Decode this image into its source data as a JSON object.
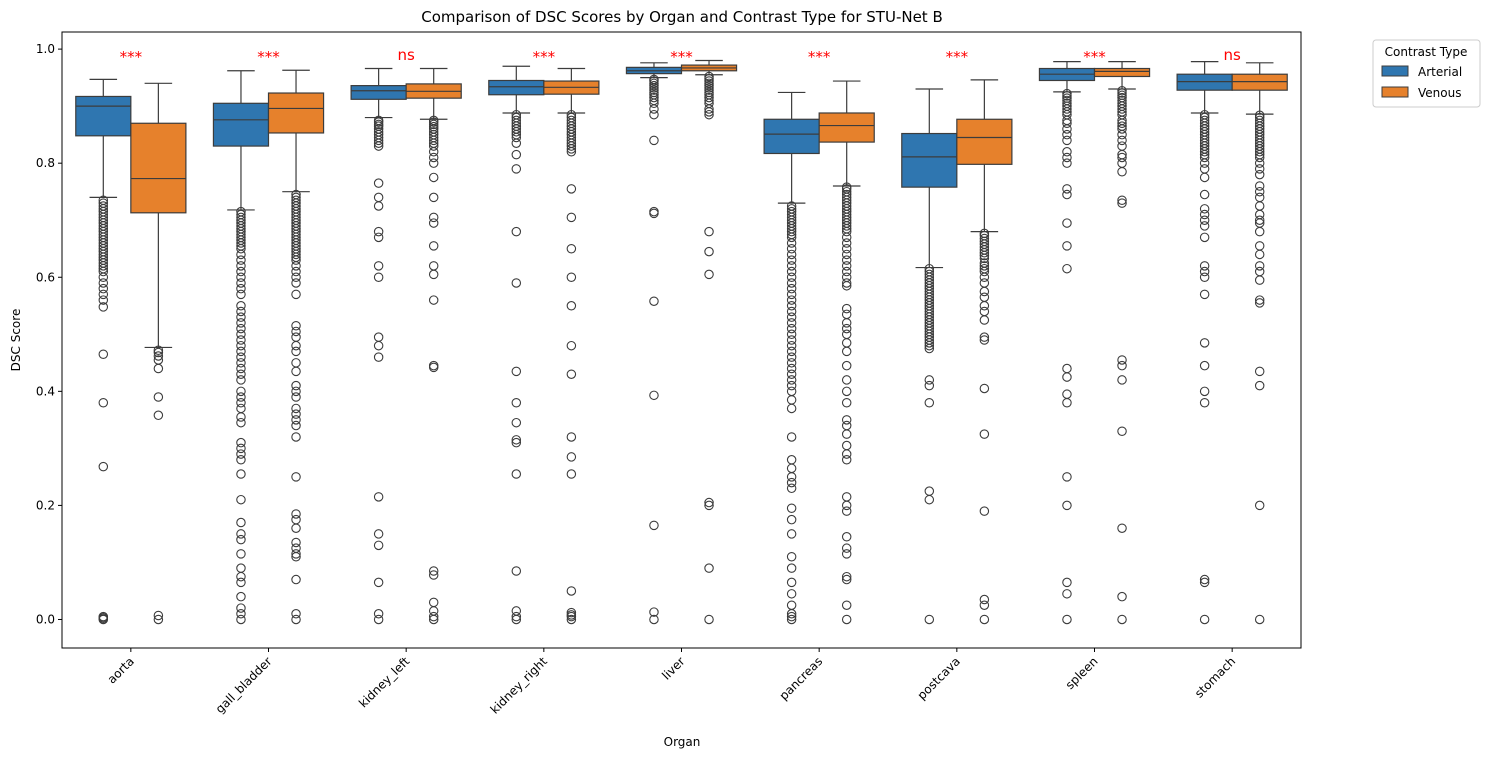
{
  "chart_data": {
    "type": "box",
    "title": "Comparison of DSC Scores by Organ and Contrast Type for STU-Net B",
    "xlabel": "Organ",
    "ylabel": "DSC Score",
    "ylim": [
      -0.05,
      1.03
    ],
    "yticks": [
      0.0,
      0.2,
      0.4,
      0.6,
      0.8,
      1.0
    ],
    "grid": false,
    "legend": {
      "title": "Contrast Type",
      "placement": "outside-top-right",
      "entries": [
        "Arterial",
        "Venous"
      ]
    },
    "colors": {
      "Arterial": "#2f76b0",
      "Venous": "#e6812c",
      "annotation": "#ff0000",
      "line": "#3c3c3c"
    },
    "categories": [
      "aorta",
      "gall_bladder",
      "kidney_left",
      "kidney_right",
      "liver",
      "pancreas",
      "postcava",
      "spleen",
      "stomach"
    ],
    "annotations": [
      "***",
      "***",
      "ns",
      "***",
      "***",
      "***",
      "***",
      "***",
      "ns"
    ],
    "series": [
      {
        "name": "Arterial",
        "boxes": [
          {
            "whislo": 0.74,
            "q1": 0.848,
            "med": 0.9,
            "q3": 0.917,
            "whishi": 0.947,
            "fliers": [
              0.735,
              0.73,
              0.725,
              0.72,
              0.715,
              0.71,
              0.705,
              0.7,
              0.695,
              0.69,
              0.685,
              0.68,
              0.675,
              0.67,
              0.665,
              0.66,
              0.655,
              0.65,
              0.645,
              0.64,
              0.635,
              0.63,
              0.625,
              0.62,
              0.615,
              0.61,
              0.6,
              0.59,
              0.58,
              0.57,
              0.56,
              0.548,
              0.465,
              0.38,
              0.268,
              0.005,
              0.003,
              0.001,
              0.0
            ]
          },
          {
            "whislo": 0.718,
            "q1": 0.83,
            "med": 0.876,
            "q3": 0.905,
            "whishi": 0.962,
            "fliers": [
              0.715,
              0.71,
              0.705,
              0.7,
              0.695,
              0.69,
              0.685,
              0.68,
              0.675,
              0.67,
              0.665,
              0.66,
              0.655,
              0.65,
              0.64,
              0.63,
              0.62,
              0.61,
              0.6,
              0.59,
              0.58,
              0.57,
              0.55,
              0.54,
              0.53,
              0.52,
              0.51,
              0.5,
              0.49,
              0.48,
              0.47,
              0.46,
              0.45,
              0.44,
              0.43,
              0.42,
              0.4,
              0.39,
              0.38,
              0.37,
              0.355,
              0.345,
              0.31,
              0.3,
              0.29,
              0.28,
              0.255,
              0.21,
              0.17,
              0.15,
              0.14,
              0.115,
              0.09,
              0.075,
              0.065,
              0.04,
              0.02,
              0.01,
              0.0
            ]
          },
          {
            "whislo": 0.88,
            "q1": 0.912,
            "med": 0.927,
            "q3": 0.936,
            "whishi": 0.966,
            "fliers": [
              0.875,
              0.872,
              0.868,
              0.865,
              0.86,
              0.855,
              0.85,
              0.845,
              0.84,
              0.835,
              0.83,
              0.765,
              0.74,
              0.725,
              0.68,
              0.67,
              0.62,
              0.6,
              0.495,
              0.48,
              0.46,
              0.215,
              0.15,
              0.13,
              0.065,
              0.01,
              0.0
            ]
          },
          {
            "whislo": 0.888,
            "q1": 0.92,
            "med": 0.934,
            "q3": 0.945,
            "whishi": 0.97,
            "fliers": [
              0.885,
              0.88,
              0.875,
              0.87,
              0.865,
              0.86,
              0.855,
              0.85,
              0.845,
              0.835,
              0.815,
              0.79,
              0.68,
              0.59,
              0.435,
              0.38,
              0.345,
              0.315,
              0.31,
              0.255,
              0.085,
              0.015,
              0.005,
              0.0
            ]
          },
          {
            "whislo": 0.95,
            "q1": 0.957,
            "med": 0.962,
            "q3": 0.968,
            "whishi": 0.976,
            "fliers": [
              0.947,
              0.944,
              0.94,
              0.936,
              0.932,
              0.928,
              0.924,
              0.92,
              0.915,
              0.91,
              0.905,
              0.895,
              0.885,
              0.84,
              0.715,
              0.712,
              0.558,
              0.393,
              0.165,
              0.013,
              0.0
            ]
          },
          {
            "whislo": 0.73,
            "q1": 0.817,
            "med": 0.851,
            "q3": 0.877,
            "whishi": 0.924,
            "fliers": [
              0.725,
              0.72,
              0.715,
              0.71,
              0.705,
              0.7,
              0.695,
              0.69,
              0.685,
              0.68,
              0.675,
              0.67,
              0.66,
              0.65,
              0.64,
              0.63,
              0.62,
              0.61,
              0.6,
              0.59,
              0.58,
              0.57,
              0.56,
              0.55,
              0.54,
              0.53,
              0.52,
              0.51,
              0.5,
              0.49,
              0.48,
              0.47,
              0.46,
              0.45,
              0.44,
              0.43,
              0.42,
              0.41,
              0.4,
              0.385,
              0.37,
              0.32,
              0.28,
              0.265,
              0.25,
              0.24,
              0.23,
              0.195,
              0.175,
              0.15,
              0.11,
              0.09,
              0.065,
              0.045,
              0.025,
              0.01,
              0.005,
              0.0
            ]
          },
          {
            "whislo": 0.617,
            "q1": 0.758,
            "med": 0.811,
            "q3": 0.852,
            "whishi": 0.93,
            "fliers": [
              0.615,
              0.61,
              0.605,
              0.6,
              0.595,
              0.59,
              0.585,
              0.58,
              0.575,
              0.57,
              0.565,
              0.56,
              0.555,
              0.55,
              0.545,
              0.54,
              0.535,
              0.53,
              0.525,
              0.52,
              0.515,
              0.51,
              0.505,
              0.5,
              0.495,
              0.49,
              0.485,
              0.48,
              0.475,
              0.42,
              0.41,
              0.38,
              0.225,
              0.21,
              0.0
            ]
          },
          {
            "whislo": 0.925,
            "q1": 0.945,
            "med": 0.956,
            "q3": 0.966,
            "whishi": 0.978,
            "fliers": [
              0.922,
              0.918,
              0.914,
              0.91,
              0.905,
              0.9,
              0.895,
              0.89,
              0.885,
              0.875,
              0.87,
              0.86,
              0.85,
              0.84,
              0.82,
              0.81,
              0.8,
              0.755,
              0.745,
              0.695,
              0.655,
              0.615,
              0.44,
              0.425,
              0.395,
              0.38,
              0.25,
              0.2,
              0.065,
              0.045,
              0.0
            ]
          },
          {
            "whislo": 0.888,
            "q1": 0.928,
            "med": 0.943,
            "q3": 0.956,
            "whishi": 0.978,
            "fliers": [
              0.885,
              0.88,
              0.875,
              0.87,
              0.865,
              0.86,
              0.855,
              0.85,
              0.845,
              0.84,
              0.835,
              0.83,
              0.825,
              0.82,
              0.815,
              0.81,
              0.8,
              0.79,
              0.775,
              0.745,
              0.72,
              0.71,
              0.7,
              0.69,
              0.67,
              0.62,
              0.61,
              0.6,
              0.57,
              0.485,
              0.445,
              0.4,
              0.38,
              0.07,
              0.065,
              0.0
            ]
          }
        ]
      },
      {
        "name": "Venous",
        "boxes": [
          {
            "whislo": 0.477,
            "q1": 0.713,
            "med": 0.773,
            "q3": 0.87,
            "whishi": 0.94,
            "fliers": [
              0.472,
              0.468,
              0.462,
              0.455,
              0.44,
              0.39,
              0.358,
              0.007,
              0.0
            ]
          },
          {
            "whislo": 0.75,
            "q1": 0.853,
            "med": 0.896,
            "q3": 0.923,
            "whishi": 0.963,
            "fliers": [
              0.745,
              0.74,
              0.735,
              0.73,
              0.725,
              0.72,
              0.715,
              0.71,
              0.705,
              0.7,
              0.695,
              0.69,
              0.685,
              0.68,
              0.675,
              0.67,
              0.665,
              0.66,
              0.655,
              0.65,
              0.645,
              0.64,
              0.635,
              0.63,
              0.62,
              0.61,
              0.6,
              0.59,
              0.57,
              0.515,
              0.505,
              0.495,
              0.48,
              0.47,
              0.45,
              0.435,
              0.41,
              0.4,
              0.39,
              0.37,
              0.36,
              0.35,
              0.34,
              0.32,
              0.25,
              0.185,
              0.175,
              0.16,
              0.135,
              0.125,
              0.115,
              0.11,
              0.07,
              0.01,
              0.0
            ]
          },
          {
            "whislo": 0.877,
            "q1": 0.914,
            "med": 0.926,
            "q3": 0.939,
            "whishi": 0.966,
            "fliers": [
              0.875,
              0.872,
              0.868,
              0.864,
              0.86,
              0.855,
              0.85,
              0.845,
              0.84,
              0.835,
              0.83,
              0.82,
              0.81,
              0.8,
              0.775,
              0.74,
              0.705,
              0.695,
              0.655,
              0.62,
              0.605,
              0.56,
              0.445,
              0.442,
              0.085,
              0.078,
              0.03,
              0.015,
              0.005,
              0.0
            ]
          },
          {
            "whislo": 0.888,
            "q1": 0.921,
            "med": 0.933,
            "q3": 0.944,
            "whishi": 0.966,
            "fliers": [
              0.885,
              0.88,
              0.875,
              0.87,
              0.865,
              0.86,
              0.855,
              0.85,
              0.845,
              0.84,
              0.835,
              0.83,
              0.825,
              0.82,
              0.755,
              0.705,
              0.65,
              0.6,
              0.55,
              0.48,
              0.43,
              0.32,
              0.285,
              0.255,
              0.05,
              0.012,
              0.008,
              0.005,
              0.0
            ]
          },
          {
            "whislo": 0.955,
            "q1": 0.962,
            "med": 0.967,
            "q3": 0.972,
            "whishi": 0.98,
            "fliers": [
              0.952,
              0.948,
              0.944,
              0.94,
              0.936,
              0.932,
              0.928,
              0.924,
              0.92,
              0.915,
              0.91,
              0.905,
              0.895,
              0.89,
              0.885,
              0.68,
              0.645,
              0.605,
              0.205,
              0.2,
              0.09,
              0.0
            ]
          },
          {
            "whislo": 0.76,
            "q1": 0.837,
            "med": 0.866,
            "q3": 0.888,
            "whishi": 0.944,
            "fliers": [
              0.758,
              0.755,
              0.75,
              0.745,
              0.74,
              0.735,
              0.73,
              0.725,
              0.72,
              0.715,
              0.71,
              0.705,
              0.7,
              0.695,
              0.69,
              0.685,
              0.68,
              0.67,
              0.66,
              0.65,
              0.64,
              0.63,
              0.62,
              0.61,
              0.6,
              0.59,
              0.585,
              0.545,
              0.535,
              0.52,
              0.51,
              0.5,
              0.485,
              0.47,
              0.445,
              0.42,
              0.4,
              0.38,
              0.35,
              0.34,
              0.325,
              0.305,
              0.29,
              0.28,
              0.215,
              0.2,
              0.19,
              0.145,
              0.125,
              0.115,
              0.075,
              0.07,
              0.025,
              0.0
            ]
          },
          {
            "whislo": 0.68,
            "q1": 0.798,
            "med": 0.845,
            "q3": 0.877,
            "whishi": 0.946,
            "fliers": [
              0.677,
              0.673,
              0.668,
              0.663,
              0.658,
              0.653,
              0.648,
              0.643,
              0.638,
              0.633,
              0.625,
              0.62,
              0.615,
              0.61,
              0.6,
              0.59,
              0.575,
              0.565,
              0.55,
              0.54,
              0.525,
              0.495,
              0.49,
              0.405,
              0.325,
              0.19,
              0.035,
              0.025,
              0.0
            ]
          },
          {
            "whislo": 0.93,
            "q1": 0.952,
            "med": 0.961,
            "q3": 0.966,
            "whishi": 0.978,
            "fliers": [
              0.927,
              0.923,
              0.919,
              0.915,
              0.91,
              0.905,
              0.9,
              0.895,
              0.89,
              0.885,
              0.875,
              0.87,
              0.865,
              0.86,
              0.85,
              0.84,
              0.83,
              0.815,
              0.81,
              0.8,
              0.785,
              0.735,
              0.73,
              0.455,
              0.445,
              0.42,
              0.33,
              0.16,
              0.04,
              0.0
            ]
          },
          {
            "whislo": 0.886,
            "q1": 0.928,
            "med": 0.943,
            "q3": 0.956,
            "whishi": 0.976,
            "fliers": [
              0.884,
              0.88,
              0.875,
              0.87,
              0.865,
              0.86,
              0.855,
              0.85,
              0.845,
              0.84,
              0.835,
              0.83,
              0.825,
              0.82,
              0.815,
              0.81,
              0.8,
              0.79,
              0.78,
              0.76,
              0.75,
              0.74,
              0.725,
              0.71,
              0.7,
              0.695,
              0.68,
              0.655,
              0.64,
              0.62,
              0.61,
              0.595,
              0.56,
              0.555,
              0.435,
              0.41,
              0.2,
              0.0
            ]
          }
        ]
      }
    ]
  }
}
